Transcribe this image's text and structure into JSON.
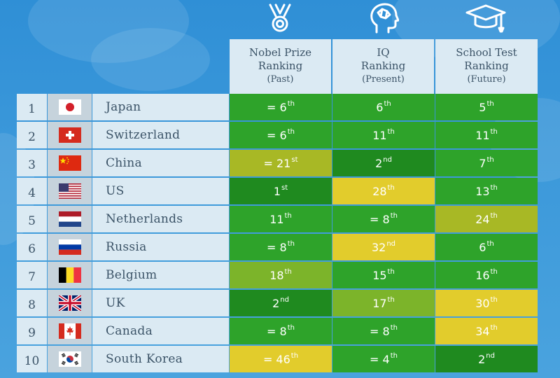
{
  "colors": {
    "dark_green": "#1f8a1f",
    "green": "#2ea32a",
    "light_green": "#7cb42a",
    "olive": "#a8b825",
    "yellow": "#e2cc2c"
  },
  "header_icons": [
    "medal-icon",
    "brain-head-icon",
    "graduation-cap-icon"
  ],
  "columns": [
    {
      "line1": "Nobel Prize",
      "line2": "Ranking",
      "sub": "(Past)"
    },
    {
      "line1": "IQ",
      "line2": "Ranking",
      "sub": "(Present)"
    },
    {
      "line1": "School Test",
      "line2": "Ranking",
      "sub": "(Future)"
    }
  ],
  "rows": [
    {
      "rank": "1",
      "country": "Japan",
      "flag": "japan-flag-icon",
      "cells": [
        {
          "text": "= 6",
          "sup": "th",
          "color": "#2ea32a"
        },
        {
          "text": "6",
          "sup": "th",
          "color": "#2ea32a"
        },
        {
          "text": "5",
          "sup": "th",
          "color": "#2ea32a"
        }
      ]
    },
    {
      "rank": "2",
      "country": "Switzerland",
      "flag": "switzerland-flag-icon",
      "cells": [
        {
          "text": "= 6",
          "sup": "th",
          "color": "#2ea32a"
        },
        {
          "text": "11",
          "sup": "th",
          "color": "#2ea32a"
        },
        {
          "text": "11",
          "sup": "th",
          "color": "#2ea32a"
        }
      ]
    },
    {
      "rank": "3",
      "country": "China",
      "flag": "china-flag-icon",
      "cells": [
        {
          "text": "= 21",
          "sup": "st",
          "color": "#a8b825"
        },
        {
          "text": "2",
          "sup": "nd",
          "color": "#1f8a1f"
        },
        {
          "text": "7",
          "sup": "th",
          "color": "#2ea32a"
        }
      ]
    },
    {
      "rank": "4",
      "country": "US",
      "flag": "us-flag-icon",
      "cells": [
        {
          "text": "1",
          "sup": "st",
          "color": "#1f8a1f"
        },
        {
          "text": "28",
          "sup": "th",
          "color": "#e2cc2c"
        },
        {
          "text": "13",
          "sup": "th",
          "color": "#2ea32a"
        }
      ]
    },
    {
      "rank": "5",
      "country": "Netherlands",
      "flag": "netherlands-flag-icon",
      "cells": [
        {
          "text": "11",
          "sup": "th",
          "color": "#2ea32a"
        },
        {
          "text": "= 8",
          "sup": "th",
          "color": "#2ea32a"
        },
        {
          "text": "24",
          "sup": "th",
          "color": "#a8b825"
        }
      ]
    },
    {
      "rank": "6",
      "country": "Russia",
      "flag": "russia-flag-icon",
      "cells": [
        {
          "text": "= 8",
          "sup": "th",
          "color": "#2ea32a"
        },
        {
          "text": "32",
          "sup": "nd",
          "color": "#e2cc2c"
        },
        {
          "text": "6",
          "sup": "th",
          "color": "#2ea32a"
        }
      ]
    },
    {
      "rank": "7",
      "country": "Belgium",
      "flag": "belgium-flag-icon",
      "cells": [
        {
          "text": "18",
          "sup": "th",
          "color": "#7cb42a"
        },
        {
          "text": "15",
          "sup": "th",
          "color": "#2ea32a"
        },
        {
          "text": "16",
          "sup": "th",
          "color": "#2ea32a"
        }
      ]
    },
    {
      "rank": "8",
      "country": "UK",
      "flag": "uk-flag-icon",
      "cells": [
        {
          "text": "2",
          "sup": "nd",
          "color": "#1f8a1f"
        },
        {
          "text": "17",
          "sup": "th",
          "color": "#7cb42a"
        },
        {
          "text": "30",
          "sup": "th",
          "color": "#e2cc2c"
        }
      ]
    },
    {
      "rank": "9",
      "country": "Canada",
      "flag": "canada-flag-icon",
      "cells": [
        {
          "text": "= 8",
          "sup": "th",
          "color": "#2ea32a"
        },
        {
          "text": "= 8",
          "sup": "th",
          "color": "#2ea32a"
        },
        {
          "text": "34",
          "sup": "th",
          "color": "#e2cc2c"
        }
      ]
    },
    {
      "rank": "10",
      "country": "South Korea",
      "flag": "south-korea-flag-icon",
      "cells": [
        {
          "text": "= 46",
          "sup": "th",
          "color": "#e2cc2c"
        },
        {
          "text": "= 4",
          "sup": "th",
          "color": "#2ea32a"
        },
        {
          "text": "2",
          "sup": "nd",
          "color": "#1f8a1f"
        }
      ]
    }
  ]
}
